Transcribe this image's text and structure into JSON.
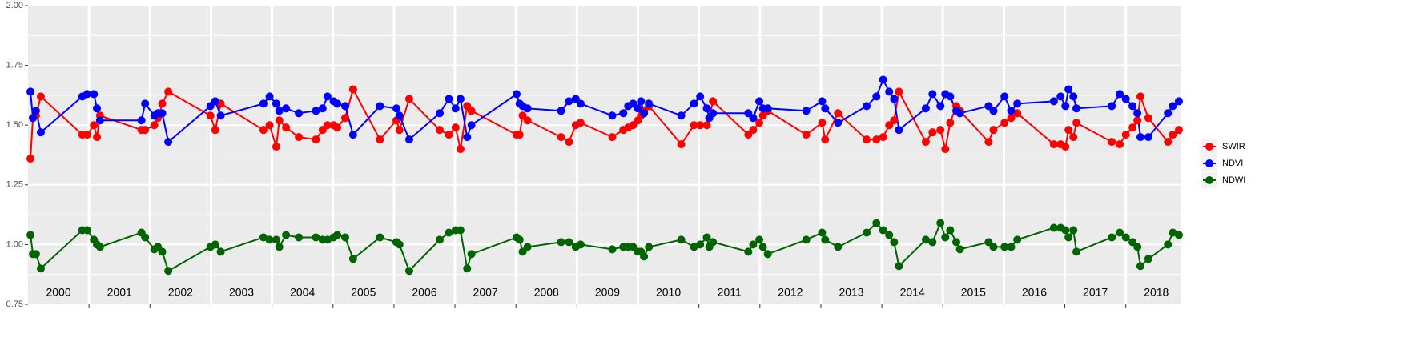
{
  "chart_data": {
    "type": "line",
    "x": [
      2000.04,
      2000.08,
      2000.13,
      2000.21,
      2000.89,
      2000.97,
      2001.08,
      2001.13,
      2001.18,
      2001.86,
      2001.92,
      2002.07,
      2002.13,
      2002.2,
      2002.3,
      2002.99,
      2003.07,
      2003.16,
      2003.86,
      2003.96,
      2004.07,
      2004.12,
      2004.23,
      2004.44,
      2004.72,
      2004.83,
      2004.91,
      2005.01,
      2005.07,
      2005.2,
      2005.33,
      2005.77,
      2006.04,
      2006.09,
      2006.25,
      2006.75,
      2006.9,
      2007.01,
      2007.09,
      2007.2,
      2007.27,
      2008.01,
      2008.06,
      2008.11,
      2008.19,
      2008.74,
      2008.87,
      2008.98,
      2009.06,
      2009.58,
      2009.76,
      2009.84,
      2009.92,
      2010.0,
      2010.05,
      2010.1,
      2010.18,
      2010.71,
      2010.92,
      2011.02,
      2011.13,
      2011.17,
      2011.23,
      2011.81,
      2011.89,
      2011.99,
      2012.05,
      2012.13,
      2012.76,
      2013.02,
      2013.07,
      2013.28,
      2013.75,
      2013.91,
      2014.02,
      2014.12,
      2014.2,
      2014.28,
      2014.72,
      2014.83,
      2014.96,
      2015.04,
      2015.12,
      2015.22,
      2015.28,
      2015.75,
      2015.83,
      2016.01,
      2016.12,
      2016.22,
      2016.82,
      2016.93,
      2017.01,
      2017.06,
      2017.14,
      2017.19,
      2017.77,
      2017.9,
      2018.0,
      2018.11,
      2018.19,
      2018.24,
      2018.37,
      2018.69,
      2018.77,
      2018.87
    ],
    "series": [
      {
        "name": "SWIR",
        "color": "#ff0000",
        "values": [
          1.36,
          1.53,
          1.54,
          1.62,
          1.46,
          1.46,
          1.5,
          1.45,
          1.54,
          1.48,
          1.48,
          1.5,
          1.53,
          1.59,
          1.64,
          1.54,
          1.48,
          1.59,
          1.48,
          1.5,
          1.41,
          1.52,
          1.49,
          1.45,
          1.44,
          1.48,
          1.5,
          1.5,
          1.49,
          1.53,
          1.65,
          1.44,
          1.52,
          1.48,
          1.61,
          1.48,
          1.46,
          1.49,
          1.4,
          1.58,
          1.56,
          1.46,
          1.46,
          1.54,
          1.52,
          1.45,
          1.43,
          1.5,
          1.51,
          1.45,
          1.48,
          1.49,
          1.5,
          1.52,
          1.54,
          1.56,
          1.58,
          1.42,
          1.5,
          1.5,
          1.5,
          1.53,
          1.6,
          1.46,
          1.48,
          1.51,
          1.54,
          1.56,
          1.46,
          1.51,
          1.44,
          1.55,
          1.44,
          1.44,
          1.45,
          1.5,
          1.52,
          1.64,
          1.43,
          1.47,
          1.48,
          1.4,
          1.51,
          1.58,
          1.56,
          1.43,
          1.48,
          1.51,
          1.53,
          1.55,
          1.42,
          1.42,
          1.41,
          1.48,
          1.45,
          1.51,
          1.43,
          1.42,
          1.46,
          1.49,
          1.52,
          1.62,
          1.53,
          1.43,
          1.46,
          1.48
        ]
      },
      {
        "name": "NDVI",
        "color": "#0000ff",
        "values": [
          1.64,
          1.53,
          1.56,
          1.47,
          1.62,
          1.63,
          1.63,
          1.57,
          1.52,
          1.52,
          1.59,
          1.54,
          1.55,
          1.55,
          1.43,
          1.58,
          1.6,
          1.54,
          1.59,
          1.62,
          1.59,
          1.56,
          1.57,
          1.55,
          1.56,
          1.57,
          1.62,
          1.6,
          1.59,
          1.58,
          1.46,
          1.58,
          1.57,
          1.54,
          1.44,
          1.55,
          1.61,
          1.57,
          1.61,
          1.45,
          1.5,
          1.63,
          1.59,
          1.58,
          1.57,
          1.56,
          1.6,
          1.61,
          1.59,
          1.54,
          1.55,
          1.58,
          1.59,
          1.57,
          1.6,
          1.55,
          1.59,
          1.54,
          1.59,
          1.62,
          1.57,
          1.53,
          1.55,
          1.55,
          1.53,
          1.6,
          1.57,
          1.57,
          1.56,
          1.6,
          1.57,
          1.51,
          1.58,
          1.62,
          1.69,
          1.64,
          1.61,
          1.48,
          1.57,
          1.63,
          1.58,
          1.63,
          1.62,
          1.56,
          1.55,
          1.58,
          1.56,
          1.62,
          1.56,
          1.59,
          1.6,
          1.62,
          1.58,
          1.65,
          1.62,
          1.57,
          1.58,
          1.63,
          1.61,
          1.58,
          1.55,
          1.45,
          1.45,
          1.55,
          1.58,
          1.6
        ]
      },
      {
        "name": "NDWI",
        "color": "#006400",
        "values": [
          1.04,
          0.96,
          0.96,
          0.9,
          1.06,
          1.06,
          1.02,
          1.0,
          0.99,
          1.05,
          1.03,
          0.98,
          0.99,
          0.97,
          0.89,
          0.99,
          1.0,
          0.97,
          1.03,
          1.02,
          1.02,
          0.99,
          1.04,
          1.03,
          1.03,
          1.02,
          1.02,
          1.03,
          1.04,
          1.03,
          0.94,
          1.03,
          1.01,
          1.0,
          0.89,
          1.02,
          1.05,
          1.06,
          1.06,
          0.9,
          0.96,
          1.03,
          1.02,
          0.97,
          0.99,
          1.01,
          1.01,
          0.99,
          1.0,
          0.98,
          0.99,
          0.99,
          0.99,
          0.97,
          0.97,
          0.95,
          0.99,
          1.02,
          0.99,
          1.0,
          1.03,
          0.99,
          1.01,
          0.97,
          1.0,
          1.02,
          0.99,
          0.96,
          1.02,
          1.05,
          1.02,
          0.99,
          1.05,
          1.09,
          1.06,
          1.04,
          1.01,
          0.91,
          1.02,
          1.01,
          1.09,
          1.03,
          1.06,
          1.01,
          0.98,
          1.01,
          0.99,
          0.99,
          0.99,
          1.02,
          1.07,
          1.07,
          1.06,
          1.03,
          1.06,
          0.97,
          1.03,
          1.05,
          1.03,
          1.01,
          0.99,
          0.91,
          0.94,
          1.0,
          1.05,
          1.04
        ]
      }
    ],
    "xlim": [
      2000,
      2018.91
    ],
    "xticks": [
      {
        "value": 2000.5,
        "label": "2000"
      },
      {
        "value": 2001.5,
        "label": "2001"
      },
      {
        "value": 2002.5,
        "label": "2002"
      },
      {
        "value": 2003.5,
        "label": "2003"
      },
      {
        "value": 2004.5,
        "label": "2004"
      },
      {
        "value": 2005.5,
        "label": "2005"
      },
      {
        "value": 2006.5,
        "label": "2006"
      },
      {
        "value": 2007.5,
        "label": "2007"
      },
      {
        "value": 2008.5,
        "label": "2008"
      },
      {
        "value": 2009.5,
        "label": "2009"
      },
      {
        "value": 2010.5,
        "label": "2010"
      },
      {
        "value": 2011.5,
        "label": "2011"
      },
      {
        "value": 2012.5,
        "label": "2012"
      },
      {
        "value": 2013.5,
        "label": "2013"
      },
      {
        "value": 2014.5,
        "label": "2014"
      },
      {
        "value": 2015.5,
        "label": "2015"
      },
      {
        "value": 2016.5,
        "label": "2016"
      },
      {
        "value": 2017.5,
        "label": "2017"
      },
      {
        "value": 2018.5,
        "label": "2018"
      }
    ],
    "xgrid": [
      2001,
      2002,
      2003,
      2004,
      2005,
      2006,
      2007,
      2008,
      2009,
      2010,
      2011,
      2012,
      2013,
      2014,
      2015,
      2016,
      2017,
      2018
    ],
    "ylim": [
      0.75,
      2.0
    ],
    "yticks": [
      {
        "value": 0.75,
        "label": "0.75"
      },
      {
        "value": 1.0,
        "label": "1.00"
      },
      {
        "value": 1.25,
        "label": "1.25"
      },
      {
        "value": 1.5,
        "label": "1.50"
      },
      {
        "value": 1.75,
        "label": "1.75"
      },
      {
        "value": 2.0,
        "label": "2.00"
      }
    ],
    "yminor": [
      0.875,
      1.125,
      1.375,
      1.625,
      1.875
    ],
    "grid": true,
    "legend": "right"
  }
}
